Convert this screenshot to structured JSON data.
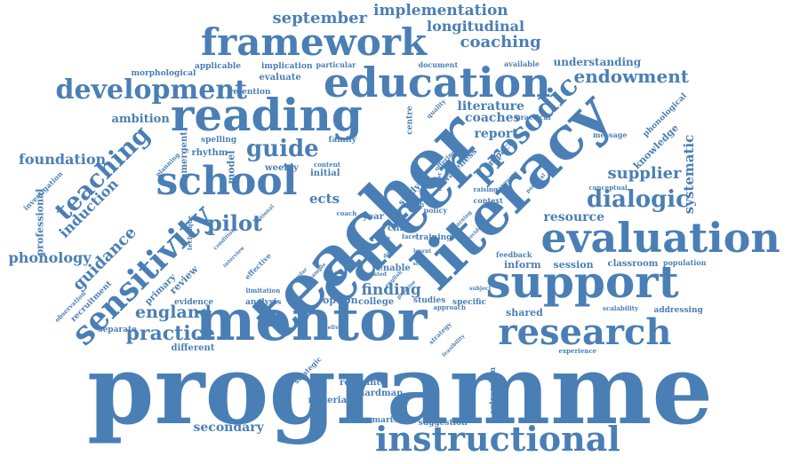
{
  "colors": {
    "word": "#4a7fb5",
    "background": "#ffffff"
  },
  "words": [
    {
      "text": "programme",
      "weight": 100,
      "orientation": "horizontal"
    },
    {
      "text": "mentor",
      "weight": 62,
      "orientation": "horizontal"
    },
    {
      "text": "teacher",
      "weight": 70,
      "orientation": "diagonal-up"
    },
    {
      "text": "career",
      "weight": 55,
      "orientation": "diagonal-up"
    },
    {
      "text": "literacy",
      "weight": 60,
      "orientation": "diagonal-up"
    },
    {
      "text": "reading",
      "weight": 48,
      "orientation": "horizontal"
    },
    {
      "text": "education",
      "weight": 42,
      "orientation": "horizontal"
    },
    {
      "text": "framework",
      "weight": 38,
      "orientation": "horizontal"
    },
    {
      "text": "school",
      "weight": 40,
      "orientation": "horizontal"
    },
    {
      "text": "instructional",
      "weight": 40,
      "orientation": "horizontal"
    },
    {
      "text": "support",
      "weight": 45,
      "orientation": "horizontal"
    },
    {
      "text": "evaluation",
      "weight": 42,
      "orientation": "horizontal"
    },
    {
      "text": "research",
      "weight": 34,
      "orientation": "horizontal"
    },
    {
      "text": "development",
      "weight": 28,
      "orientation": "horizontal"
    },
    {
      "text": "sensitivity",
      "weight": 30,
      "orientation": "diagonal-up"
    },
    {
      "text": "prosodic",
      "weight": 28,
      "orientation": "diagonal-up"
    },
    {
      "text": "teaching",
      "weight": 26,
      "orientation": "diagonal-up"
    },
    {
      "text": "dialogic",
      "weight": 24,
      "orientation": "horizontal"
    },
    {
      "text": "guide",
      "weight": 22,
      "orientation": "horizontal"
    },
    {
      "text": "pilot",
      "weight": 22,
      "orientation": "horizontal"
    },
    {
      "text": "practice",
      "weight": 20,
      "orientation": "horizontal"
    },
    {
      "text": "endowment",
      "weight": 18,
      "orientation": "horizontal"
    },
    {
      "text": "coaching",
      "weight": 16,
      "orientation": "horizontal"
    },
    {
      "text": "september",
      "weight": 16,
      "orientation": "horizontal"
    },
    {
      "text": "implementation",
      "weight": 15,
      "orientation": "horizontal"
    },
    {
      "text": "longitudinal",
      "weight": 14,
      "orientation": "horizontal"
    },
    {
      "text": "supplier",
      "weight": 16,
      "orientation": "horizontal"
    },
    {
      "text": "england",
      "weight": 17,
      "orientation": "horizontal"
    },
    {
      "text": "phonology",
      "weight": 15,
      "orientation": "horizontal"
    },
    {
      "text": "foundation",
      "weight": 15,
      "orientation": "horizontal"
    },
    {
      "text": "induction",
      "weight": 15,
      "orientation": "diagonal-up"
    },
    {
      "text": "guidance",
      "weight": 16,
      "orientation": "diagonal-up"
    },
    {
      "text": "finding",
      "weight": 15,
      "orientation": "horizontal"
    },
    {
      "text": "secondary",
      "weight": 13,
      "orientation": "horizontal"
    },
    {
      "text": "literature",
      "weight": 13,
      "orientation": "horizontal"
    },
    {
      "text": "coaches",
      "weight": 13,
      "orientation": "horizontal"
    },
    {
      "text": "report",
      "weight": 13,
      "orientation": "horizontal"
    },
    {
      "text": "resource",
      "weight": 13,
      "orientation": "horizontal"
    },
    {
      "text": "systematic",
      "weight": 13,
      "orientation": "vertical"
    },
    {
      "text": "ambition",
      "weight": 12,
      "orientation": "horizontal"
    },
    {
      "text": "understanding",
      "weight": 12,
      "orientation": "horizontal"
    },
    {
      "text": "ects",
      "weight": 13,
      "orientation": "horizontal"
    },
    {
      "text": "knowledge",
      "weight": 11,
      "orientation": "diagonal-up"
    },
    {
      "text": "professional",
      "weight": 11,
      "orientation": "vertical"
    },
    {
      "text": "model",
      "weight": 11,
      "orientation": "vertical"
    },
    {
      "text": "emergent",
      "weight": 10,
      "orientation": "vertical"
    },
    {
      "text": "rhythm",
      "weight": 10,
      "orientation": "horizontal"
    },
    {
      "text": "weekly",
      "weight": 10,
      "orientation": "horizontal"
    },
    {
      "text": "initial",
      "weight": 10,
      "orientation": "horizontal"
    },
    {
      "text": "evaluate",
      "weight": 10,
      "orientation": "horizontal"
    },
    {
      "text": "implication",
      "weight": 9,
      "orientation": "horizontal"
    },
    {
      "text": "applicable",
      "weight": 9,
      "orientation": "horizontal"
    },
    {
      "text": "retention",
      "weight": 9,
      "orientation": "horizontal"
    },
    {
      "text": "morphological",
      "weight": 9,
      "orientation": "horizontal"
    },
    {
      "text": "particular",
      "weight": 8,
      "orientation": "horizontal"
    },
    {
      "text": "document",
      "weight": 8,
      "orientation": "horizontal"
    },
    {
      "text": "available",
      "weight": 8,
      "orientation": "horizontal"
    },
    {
      "text": "practical",
      "weight": 8,
      "orientation": "horizontal"
    },
    {
      "text": "message",
      "weight": 8,
      "orientation": "horizontal"
    },
    {
      "text": "phonological",
      "weight": 9,
      "orientation": "diagonal-up"
    },
    {
      "text": "spelling",
      "weight": 9,
      "orientation": "horizontal"
    },
    {
      "text": "family",
      "weight": 9,
      "orientation": "horizontal"
    },
    {
      "text": "centre",
      "weight": 9,
      "orientation": "vertical"
    },
    {
      "text": "impact",
      "weight": 10,
      "orientation": "diagonal-up"
    },
    {
      "text": "awareness",
      "weight": 10,
      "orientation": "diagonal-up"
    },
    {
      "text": "study",
      "weight": 10,
      "orientation": "diagonal-up"
    },
    {
      "text": "year",
      "weight": 10,
      "orientation": "horizontal"
    },
    {
      "text": "role",
      "weight": 10,
      "orientation": "horizontal"
    },
    {
      "text": "child",
      "weight": 10,
      "orientation": "horizontal"
    },
    {
      "text": "enable",
      "weight": 10,
      "orientation": "horizontal"
    },
    {
      "text": "training",
      "weight": 9,
      "orientation": "horizontal"
    },
    {
      "text": "inform",
      "weight": 11,
      "orientation": "horizontal"
    },
    {
      "text": "session",
      "weight": 11,
      "orientation": "horizontal"
    },
    {
      "text": "classroom",
      "weight": 10,
      "orientation": "horizontal"
    },
    {
      "text": "population",
      "weight": 8,
      "orientation": "horizontal"
    },
    {
      "text": "feedback",
      "weight": 8,
      "orientation": "horizontal"
    },
    {
      "text": "option",
      "weight": 11,
      "orientation": "horizontal"
    },
    {
      "text": "college",
      "weight": 10,
      "orientation": "horizontal"
    },
    {
      "text": "studies",
      "weight": 9,
      "orientation": "horizontal"
    },
    {
      "text": "specific",
      "weight": 9,
      "orientation": "horizontal"
    },
    {
      "text": "shared",
      "weight": 11,
      "orientation": "horizontal"
    },
    {
      "text": "addressing",
      "weight": 9,
      "orientation": "horizontal"
    },
    {
      "text": "scalability",
      "weight": 7,
      "orientation": "horizontal"
    },
    {
      "text": "experience",
      "weight": 7,
      "orientation": "horizontal"
    },
    {
      "text": "extremism",
      "weight": 9,
      "orientation": "vertical"
    },
    {
      "text": "suggestion",
      "weight": 9,
      "orientation": "horizontal"
    },
    {
      "text": "summarise",
      "weight": 9,
      "orientation": "horizontal"
    },
    {
      "text": "relevant",
      "weight": 10,
      "orientation": "horizontal"
    },
    {
      "text": "hardman",
      "weight": 10,
      "orientation": "horizontal"
    },
    {
      "text": "material",
      "weight": 10,
      "orientation": "horizontal"
    },
    {
      "text": "strategic",
      "weight": 8,
      "orientation": "diagonal-up"
    },
    {
      "text": "different",
      "weight": 10,
      "orientation": "horizontal"
    },
    {
      "text": "separate",
      "weight": 9,
      "orientation": "horizontal"
    },
    {
      "text": "evidence",
      "weight": 9,
      "orientation": "horizontal"
    },
    {
      "text": "analysis",
      "weight": 9,
      "orientation": "horizontal"
    },
    {
      "text": "limitation",
      "weight": 7,
      "orientation": "horizontal"
    },
    {
      "text": "review",
      "weight": 11,
      "orientation": "diagonal-up"
    },
    {
      "text": "primary",
      "weight": 10,
      "orientation": "diagonal-up"
    },
    {
      "text": "recruitment",
      "weight": 9,
      "orientation": "diagonal-up"
    },
    {
      "text": "observation",
      "weight": 7,
      "orientation": "diagonal-up"
    },
    {
      "text": "effective",
      "weight": 8,
      "orientation": "diagonal-up"
    },
    {
      "text": "investigation",
      "weight": 8,
      "orientation": "diagonal-up"
    },
    {
      "text": "technique",
      "weight": 7,
      "orientation": "vertical"
    },
    {
      "text": "planning",
      "weight": 7,
      "orientation": "diagonal-up"
    },
    {
      "text": "strategy",
      "weight": 7,
      "orientation": "diagonal-up"
    },
    {
      "text": "content",
      "weight": 7,
      "orientation": "horizontal"
    },
    {
      "text": "approach",
      "weight": 7,
      "orientation": "horizontal"
    },
    {
      "text": "context",
      "weight": 8,
      "orientation": "horizontal"
    },
    {
      "text": "policy",
      "weight": 8,
      "orientation": "horizontal"
    },
    {
      "text": "lesson",
      "weight": 7,
      "orientation": "horizontal"
    },
    {
      "text": "coach",
      "weight": 7,
      "orientation": "horizontal"
    },
    {
      "text": "conceptual",
      "weight": 7,
      "orientation": "horizontal"
    },
    {
      "text": "raising",
      "weight": 7,
      "orientation": "horizontal"
    },
    {
      "text": "quality",
      "weight": 7,
      "orientation": "diagonal-up"
    },
    {
      "text": "offering",
      "weight": 7,
      "orientation": "diagonal-up"
    },
    {
      "text": "delivery",
      "weight": 6,
      "orientation": "horizontal"
    },
    {
      "text": "feasibility",
      "weight": 6,
      "orientation": "diagonal-up"
    },
    {
      "text": "sample",
      "weight": 6,
      "orientation": "diagonal-up"
    },
    {
      "text": "condition",
      "weight": 6,
      "orientation": "diagonal-up"
    },
    {
      "text": "national",
      "weight": 6,
      "orientation": "diagonal-up"
    },
    {
      "text": "subject",
      "weight": 6,
      "orientation": "horizontal"
    },
    {
      "text": "learning",
      "weight": 6,
      "orientation": "diagonal-up"
    },
    {
      "text": "language",
      "weight": 6,
      "orientation": "diagonal-up"
    },
    {
      "text": "provide",
      "weight": 6,
      "orientation": "diagonal-up"
    },
    {
      "text": "english",
      "weight": 6,
      "orientation": "diagonal-up"
    },
    {
      "text": "promise",
      "weight": 6,
      "orientation": "diagonal-up"
    },
    {
      "text": "regular",
      "weight": 6,
      "orientation": "diagonal-up"
    },
    {
      "text": "interview",
      "weight": 6,
      "orientation": "diagonal-up"
    },
    {
      "text": "leader",
      "weight": 6,
      "orientation": "vertical"
    },
    {
      "text": "parental",
      "weight": 6,
      "orientation": "diagonal-up"
    },
    {
      "text": "daily",
      "weight": 6,
      "orientation": "diagonal-up"
    },
    {
      "text": "face",
      "weight": 7,
      "orientation": "horizontal"
    },
    {
      "text": "learnt",
      "weight": 6,
      "orientation": "horizontal"
    },
    {
      "text": "related",
      "weight": 6,
      "orientation": "horizontal"
    },
    {
      "text": "story",
      "weight": 6,
      "orientation": "horizontal"
    }
  ]
}
